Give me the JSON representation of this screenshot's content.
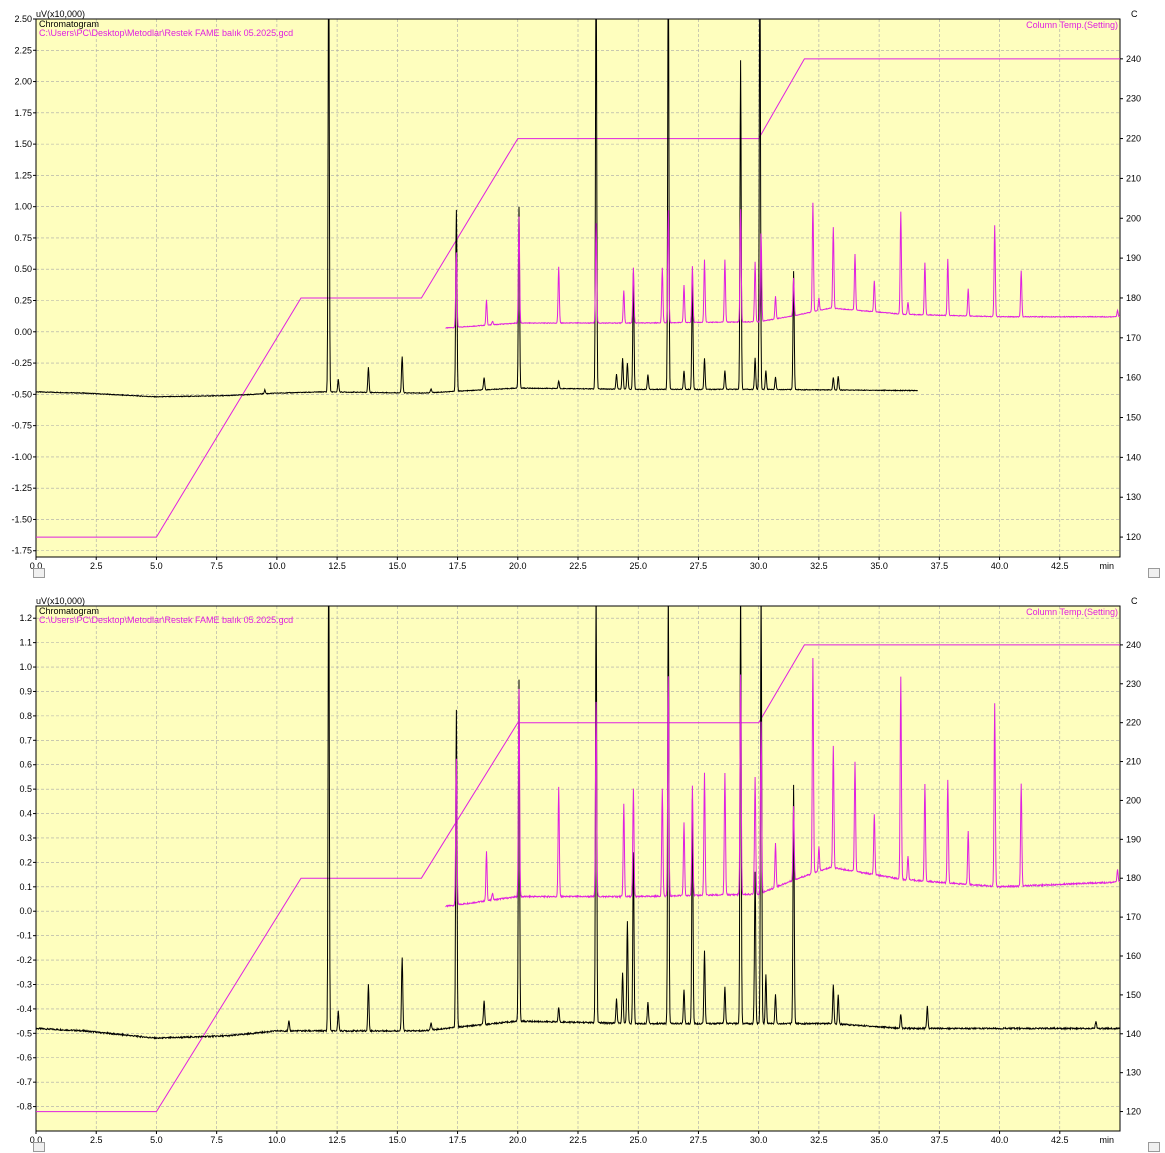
{
  "chart_data": [
    {
      "type": "line",
      "y_unit": "uV(x10,000)",
      "panel_title": "Chromatogram",
      "file_path": "C:\\Users\\PC\\Desktop\\Metodlar\\Restek FAME balık 05.2025.gcd",
      "y2_unit": "C",
      "y2_series_label": "Column Temp.(Setting)",
      "x_unit": "min",
      "xlim": [
        0,
        45
      ],
      "ylim": [
        -1.8,
        2.5
      ],
      "y2lim": [
        115,
        250
      ],
      "x_ticks": [
        "0.0",
        "2.5",
        "5.0",
        "7.5",
        "10.0",
        "12.5",
        "15.0",
        "17.5",
        "20.0",
        "22.5",
        "25.0",
        "27.5",
        "30.0",
        "32.5",
        "35.0",
        "37.5",
        "40.0",
        "42.5"
      ],
      "y_ticks": [
        "2.50",
        "2.25",
        "2.00",
        "1.75",
        "1.50",
        "1.25",
        "1.00",
        "0.75",
        "0.50",
        "0.25",
        "0.00",
        "-0.25",
        "-0.50",
        "-0.75",
        "-1.00",
        "-1.25",
        "-1.50",
        "-1.75"
      ],
      "y2_ticks": [
        "240",
        "230",
        "220",
        "210",
        "200",
        "190",
        "180",
        "170",
        "160",
        "150",
        "140",
        "130",
        "120"
      ],
      "temperature_program": {
        "x": [
          0,
          5,
          11,
          16,
          20,
          30,
          31.9,
          45
        ],
        "y": [
          120,
          120,
          180,
          180,
          220,
          220,
          240,
          240
        ]
      },
      "black_trace": {
        "x_end": 36.6,
        "baseline_points": [
          [
            0,
            -0.48
          ],
          [
            2,
            -0.49
          ],
          [
            5,
            -0.52
          ],
          [
            8,
            -0.51
          ],
          [
            10,
            -0.49
          ],
          [
            12,
            -0.48
          ],
          [
            16,
            -0.49
          ],
          [
            20,
            -0.45
          ],
          [
            25,
            -0.46
          ],
          [
            30,
            -0.46
          ],
          [
            36.6,
            -0.47
          ]
        ],
        "peaks": [
          [
            9.5,
            0.03
          ],
          [
            12.15,
            3.6
          ],
          [
            12.55,
            0.1
          ],
          [
            13.8,
            0.2
          ],
          [
            15.2,
            0.29
          ],
          [
            16.4,
            0.03
          ],
          [
            17.45,
            1.45
          ],
          [
            18.6,
            0.1
          ],
          [
            20.05,
            1.45
          ],
          [
            21.7,
            0.06
          ],
          [
            23.25,
            3.5
          ],
          [
            24.1,
            0.12
          ],
          [
            24.35,
            0.25
          ],
          [
            24.55,
            0.21
          ],
          [
            24.8,
            0.93
          ],
          [
            25.4,
            0.12
          ],
          [
            26.25,
            3.5
          ],
          [
            26.9,
            0.15
          ],
          [
            27.25,
            0.86
          ],
          [
            27.75,
            0.25
          ],
          [
            28.6,
            0.15
          ],
          [
            29.25,
            2.63
          ],
          [
            29.85,
            0.25
          ],
          [
            30.05,
            3.5
          ],
          [
            30.3,
            0.15
          ],
          [
            30.7,
            0.1
          ],
          [
            31.45,
            0.95
          ],
          [
            33.1,
            0.1
          ],
          [
            33.3,
            0.11
          ]
        ]
      },
      "magenta_trace": {
        "x_start": 17.0,
        "baseline_points": [
          [
            17,
            0.03
          ],
          [
            20,
            0.07
          ],
          [
            25,
            0.07
          ],
          [
            30,
            0.08
          ],
          [
            31.5,
            0.13
          ],
          [
            33,
            0.19
          ],
          [
            36,
            0.14
          ],
          [
            40,
            0.12
          ],
          [
            45,
            0.12
          ]
        ],
        "peaks": [
          [
            17.45,
            0.6
          ],
          [
            18.7,
            0.2
          ],
          [
            18.95,
            0.03
          ],
          [
            20.05,
            0.85
          ],
          [
            21.7,
            0.45
          ],
          [
            23.25,
            0.8
          ],
          [
            24.4,
            0.26
          ],
          [
            24.8,
            0.44
          ],
          [
            26.0,
            0.44
          ],
          [
            26.25,
            0.9
          ],
          [
            26.9,
            0.3
          ],
          [
            27.25,
            0.45
          ],
          [
            27.75,
            0.5
          ],
          [
            28.6,
            0.5
          ],
          [
            29.25,
            0.9
          ],
          [
            29.85,
            0.48
          ],
          [
            30.1,
            0.7
          ],
          [
            30.7,
            0.18
          ],
          [
            31.45,
            0.3
          ],
          [
            32.25,
            0.87
          ],
          [
            32.5,
            0.1
          ],
          [
            33.1,
            0.65
          ],
          [
            34.0,
            0.45
          ],
          [
            34.8,
            0.25
          ],
          [
            35.9,
            0.82
          ],
          [
            36.2,
            0.1
          ],
          [
            36.9,
            0.42
          ],
          [
            37.85,
            0.45
          ],
          [
            38.7,
            0.22
          ],
          [
            39.8,
            0.73
          ],
          [
            40.9,
            0.37
          ],
          [
            44.9,
            0.05
          ]
        ]
      }
    },
    {
      "type": "line",
      "y_unit": "uV(x10,000)",
      "panel_title": "Chromatogram",
      "file_path": "C:\\Users\\PC\\Desktop\\Metodlar\\Restek FAME balık 05.2025.gcd",
      "y2_unit": "C",
      "y2_series_label": "Column Temp.(Setting)",
      "x_unit": "min",
      "xlim": [
        0,
        45
      ],
      "ylim": [
        -0.9,
        1.25
      ],
      "y2lim": [
        115,
        250
      ],
      "x_ticks": [
        "0.0",
        "2.5",
        "5.0",
        "7.5",
        "10.0",
        "12.5",
        "15.0",
        "17.5",
        "20.0",
        "22.5",
        "25.0",
        "27.5",
        "30.0",
        "32.5",
        "35.0",
        "37.5",
        "40.0",
        "42.5"
      ],
      "y_ticks": [
        "1.2",
        "1.1",
        "1.0",
        "0.9",
        "0.8",
        "0.7",
        "0.6",
        "0.5",
        "0.4",
        "0.3",
        "0.2",
        "0.1",
        "0.0",
        "-0.1",
        "-0.2",
        "-0.3",
        "-0.4",
        "-0.5",
        "-0.6",
        "-0.7",
        "-0.8"
      ],
      "y2_ticks": [
        "240",
        "230",
        "220",
        "210",
        "200",
        "190",
        "180",
        "170",
        "160",
        "150",
        "140",
        "130",
        "120"
      ],
      "temperature_program": {
        "x": [
          0,
          5,
          11,
          16,
          20,
          30,
          31.9,
          45
        ],
        "y": [
          120,
          120,
          180,
          180,
          220,
          220,
          240,
          240
        ]
      },
      "black_trace": {
        "x_end": 45,
        "baseline_points": [
          [
            0,
            -0.48
          ],
          [
            2,
            -0.49
          ],
          [
            5,
            -0.52
          ],
          [
            8,
            -0.51
          ],
          [
            10,
            -0.49
          ],
          [
            12,
            -0.49
          ],
          [
            16,
            -0.49
          ],
          [
            20,
            -0.45
          ],
          [
            25,
            -0.46
          ],
          [
            30,
            -0.46
          ],
          [
            33,
            -0.46
          ],
          [
            36,
            -0.48
          ],
          [
            40,
            -0.48
          ],
          [
            45,
            -0.48
          ]
        ],
        "peaks": [
          [
            10.5,
            0.04
          ],
          [
            12.15,
            2.0
          ],
          [
            12.55,
            0.08
          ],
          [
            13.8,
            0.19
          ],
          [
            15.2,
            0.3
          ],
          [
            16.4,
            0.03
          ],
          [
            17.45,
            1.3
          ],
          [
            18.6,
            0.1
          ],
          [
            20.05,
            1.4
          ],
          [
            21.7,
            0.06
          ],
          [
            23.25,
            1.8
          ],
          [
            24.1,
            0.1
          ],
          [
            24.35,
            0.21
          ],
          [
            24.55,
            0.42
          ],
          [
            24.8,
            0.7
          ],
          [
            25.4,
            0.09
          ],
          [
            26.25,
            1.8
          ],
          [
            26.9,
            0.14
          ],
          [
            27.25,
            0.92
          ],
          [
            27.75,
            0.3
          ],
          [
            28.6,
            0.15
          ],
          [
            29.25,
            1.8
          ],
          [
            29.85,
            0.62
          ],
          [
            30.1,
            1.8
          ],
          [
            30.3,
            0.2
          ],
          [
            30.7,
            0.12
          ],
          [
            31.45,
            0.98
          ],
          [
            33.1,
            0.16
          ],
          [
            33.3,
            0.12
          ],
          [
            35.9,
            0.06
          ],
          [
            37.0,
            0.09
          ],
          [
            44.0,
            0.03
          ]
        ]
      },
      "magenta_trace": {
        "x_start": 17.0,
        "baseline_points": [
          [
            17,
            0.02
          ],
          [
            20,
            0.06
          ],
          [
            25,
            0.06
          ],
          [
            30,
            0.07
          ],
          [
            31.5,
            0.13
          ],
          [
            33,
            0.18
          ],
          [
            36,
            0.13
          ],
          [
            40,
            0.1
          ],
          [
            45,
            0.12
          ]
        ],
        "peaks": [
          [
            17.45,
            0.6
          ],
          [
            18.7,
            0.2
          ],
          [
            18.95,
            0.03
          ],
          [
            20.05,
            0.85
          ],
          [
            21.7,
            0.45
          ],
          [
            23.25,
            0.8
          ],
          [
            24.4,
            0.38
          ],
          [
            24.8,
            0.44
          ],
          [
            26.0,
            0.44
          ],
          [
            26.25,
            0.9
          ],
          [
            26.9,
            0.3
          ],
          [
            27.25,
            0.45
          ],
          [
            27.75,
            0.5
          ],
          [
            28.6,
            0.5
          ],
          [
            29.25,
            0.9
          ],
          [
            29.85,
            0.48
          ],
          [
            30.1,
            0.7
          ],
          [
            30.7,
            0.18
          ],
          [
            31.45,
            0.3
          ],
          [
            32.25,
            0.88
          ],
          [
            32.5,
            0.1
          ],
          [
            33.1,
            0.5
          ],
          [
            34.0,
            0.45
          ],
          [
            34.8,
            0.25
          ],
          [
            35.9,
            0.83
          ],
          [
            36.2,
            0.1
          ],
          [
            36.9,
            0.4
          ],
          [
            37.85,
            0.42
          ],
          [
            38.7,
            0.22
          ],
          [
            39.8,
            0.75
          ],
          [
            40.9,
            0.42
          ],
          [
            44.9,
            0.05
          ]
        ]
      }
    }
  ]
}
